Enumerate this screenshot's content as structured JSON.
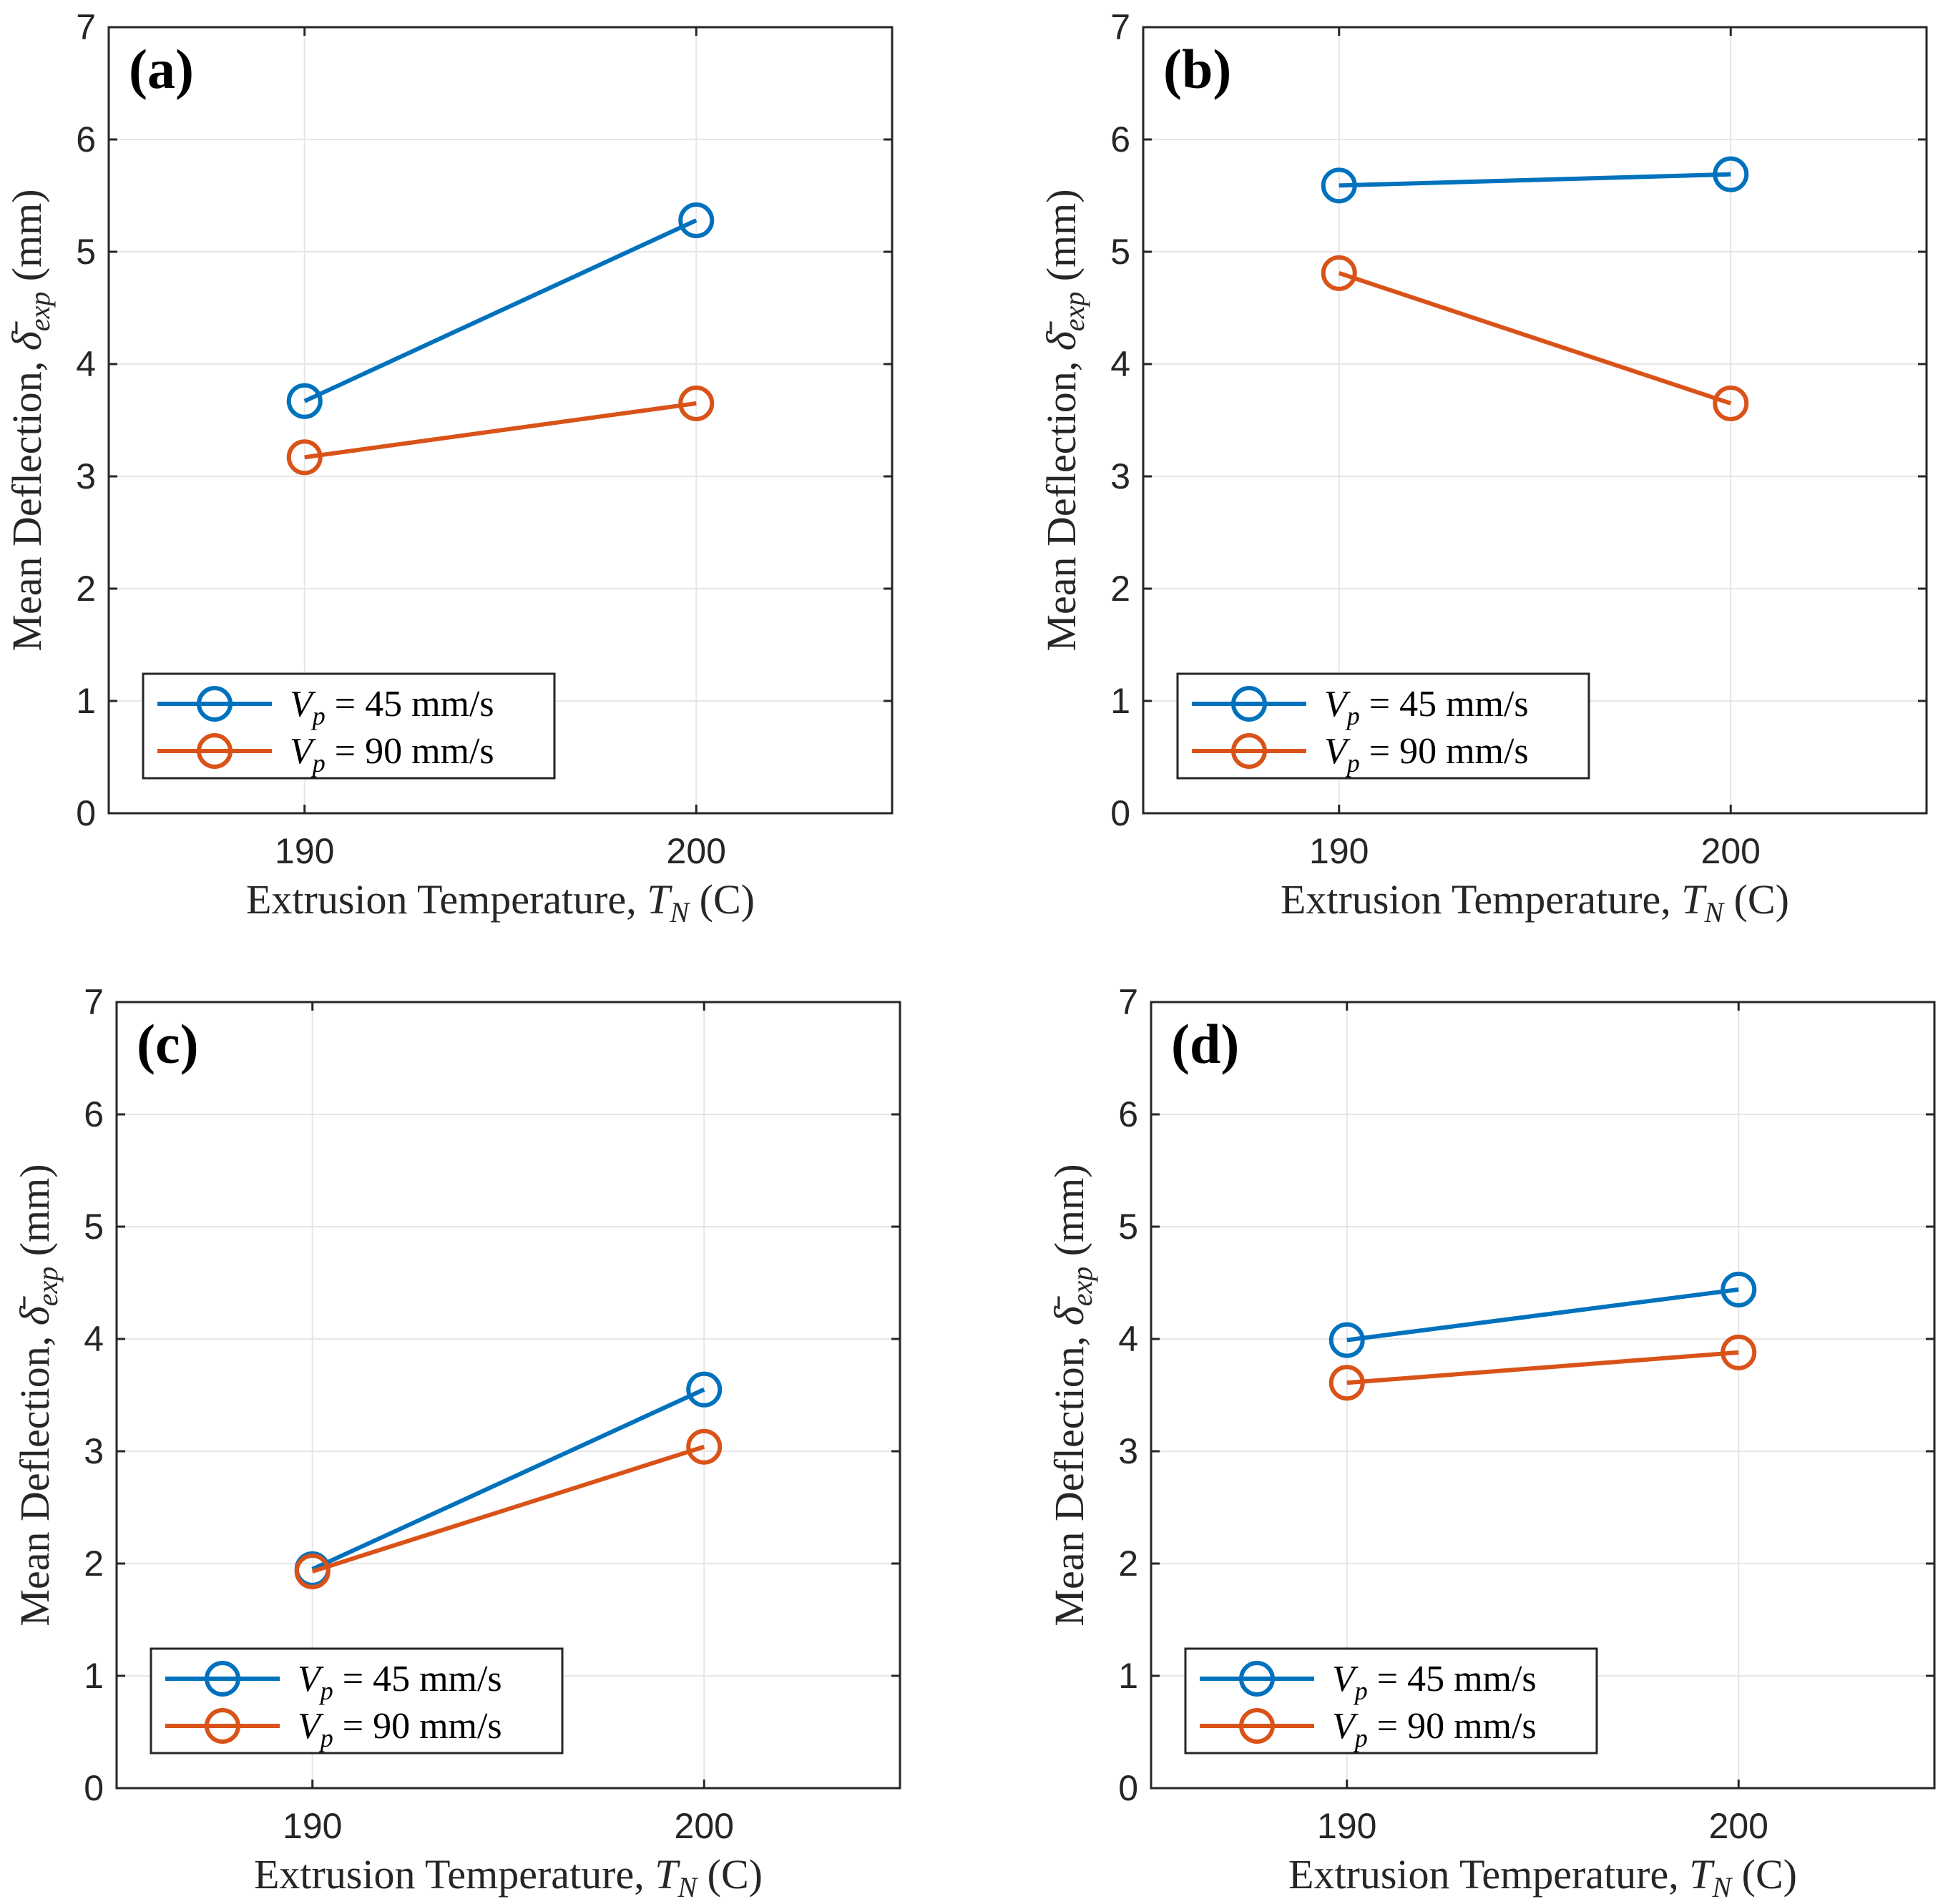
{
  "chart_data": [
    {
      "type": "line",
      "panel_label": "(a)",
      "categories": [
        "190",
        "200"
      ],
      "x": [
        190,
        200
      ],
      "xlim": [
        185,
        205
      ],
      "ylim": [
        0,
        7
      ],
      "yticks": [
        "0",
        "1",
        "2",
        "3",
        "4",
        "5",
        "6",
        "7"
      ],
      "xlabel": "Extrusion Temperature, T_N (C)",
      "ylabel": "Mean Deflection, δ̄_exp (mm)",
      "grid": true,
      "legend_position": "bottom-left",
      "series": [
        {
          "name": "V_p = 45 mm/s",
          "values": [
            3.67,
            5.28
          ],
          "color": "#0072BD"
        },
        {
          "name": "V_p = 90 mm/s",
          "values": [
            3.17,
            3.65
          ],
          "color": "#D95319"
        }
      ]
    },
    {
      "type": "line",
      "panel_label": "(b)",
      "categories": [
        "190",
        "200"
      ],
      "x": [
        190,
        200
      ],
      "xlim": [
        185,
        205
      ],
      "ylim": [
        0,
        7
      ],
      "yticks": [
        "0",
        "1",
        "2",
        "3",
        "4",
        "5",
        "6",
        "7"
      ],
      "xlabel": "Extrusion Temperature, T_N (C)",
      "ylabel": "Mean Deflection, δ̄_exp (mm)",
      "grid": true,
      "legend_position": "bottom-left",
      "series": [
        {
          "name": "V_p = 45 mm/s",
          "values": [
            5.59,
            5.69
          ],
          "color": "#0072BD"
        },
        {
          "name": "V_p = 90 mm/s",
          "values": [
            4.81,
            3.65
          ],
          "color": "#D95319"
        }
      ]
    },
    {
      "type": "line",
      "panel_label": "(c)",
      "categories": [
        "190",
        "200"
      ],
      "x": [
        190,
        200
      ],
      "xlim": [
        185,
        205
      ],
      "ylim": [
        0,
        7
      ],
      "yticks": [
        "0",
        "1",
        "2",
        "3",
        "4",
        "5",
        "6",
        "7"
      ],
      "xlabel": "Extrusion Temperature, T_N (C)",
      "ylabel": "Mean Deflection, δ̄_exp (mm)",
      "grid": true,
      "legend_position": "bottom-left",
      "series": [
        {
          "name": "V_p = 45 mm/s",
          "values": [
            1.95,
            3.55
          ],
          "color": "#0072BD"
        },
        {
          "name": "V_p = 90 mm/s",
          "values": [
            1.93,
            3.04
          ],
          "color": "#D95319"
        }
      ]
    },
    {
      "type": "line",
      "panel_label": "(d)",
      "categories": [
        "190",
        "200"
      ],
      "x": [
        190,
        200
      ],
      "xlim": [
        185,
        205
      ],
      "ylim": [
        0,
        7
      ],
      "yticks": [
        "0",
        "1",
        "2",
        "3",
        "4",
        "5",
        "6",
        "7"
      ],
      "xlabel": "Extrusion Temperature, T_N (C)",
      "ylabel": "Mean Deflection, δ̄_exp (mm)",
      "grid": true,
      "legend_position": "bottom-left",
      "series": [
        {
          "name": "V_p = 45 mm/s",
          "values": [
            3.99,
            4.44
          ],
          "color": "#0072BD"
        },
        {
          "name": "V_p = 90 mm/s",
          "values": [
            3.61,
            3.88
          ],
          "color": "#D95319"
        }
      ]
    }
  ],
  "labels": {
    "ylabel_prefix": "Mean Deflection, ",
    "ylabel_symbol": "δ̄",
    "ylabel_subscript": "exp",
    "ylabel_suffix": " (mm)",
    "xlabel_prefix": "Extrusion Temperature, ",
    "xlabel_symbol": "T",
    "xlabel_subscript": "N",
    "xlabel_suffix": " (C)",
    "legend_symbol": "V",
    "legend_subscript": "p",
    "legend_45": " = 45 mm/s",
    "legend_90": " = 90 mm/s"
  }
}
